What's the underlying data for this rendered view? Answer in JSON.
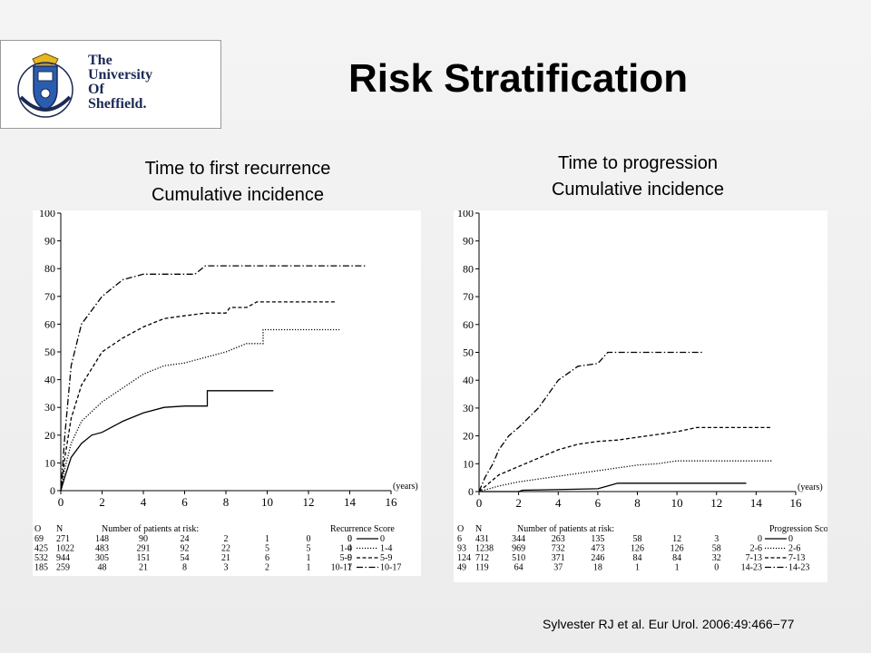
{
  "slide": {
    "title": "Risk Stratification",
    "citation": "Sylvester RJ et al. Eur Urol. 2006:49:466−77"
  },
  "logo": {
    "lines": [
      "The",
      "University",
      "Of",
      "Sheffield."
    ]
  },
  "captions": {
    "left": [
      "Time to first recurrence",
      "Cumulative incidence"
    ],
    "right": [
      "Time to progression",
      "Cumulative incidence"
    ]
  },
  "chart_data": [
    {
      "type": "line",
      "title": "",
      "xlabel": "(years)",
      "ylabel": "",
      "xlim": [
        0,
        16
      ],
      "ylim": [
        0,
        100
      ],
      "x_ticks": [
        0,
        2,
        4,
        6,
        8,
        10,
        12,
        14,
        16
      ],
      "y_ticks": [
        0,
        10,
        20,
        30,
        40,
        50,
        60,
        70,
        80,
        90,
        100
      ],
      "grid": false,
      "risk_table": {
        "title": "Number of patients at risk:",
        "col_O": "O",
        "col_N": "N",
        "score_title": "Recurrence Score",
        "rows": [
          {
            "O": "69",
            "N": "271",
            "counts": [
              "148",
              "90",
              "24",
              "2",
              "1",
              "0",
              "0"
            ],
            "score": "0"
          },
          {
            "O": "425",
            "N": "1022",
            "counts": [
              "483",
              "291",
              "92",
              "22",
              "5",
              "5",
              "0"
            ],
            "score": "1-4"
          },
          {
            "O": "532",
            "N": "944",
            "counts": [
              "305",
              "151",
              "54",
              "21",
              "6",
              "1",
              "0"
            ],
            "score": "5-9"
          },
          {
            "O": "185",
            "N": "259",
            "counts": [
              "48",
              "21",
              "8",
              "3",
              "2",
              "1",
              "1"
            ],
            "score": "10-17"
          }
        ]
      },
      "series": [
        {
          "name": "0",
          "dash": "solid",
          "points": [
            [
              0,
              0
            ],
            [
              0.2,
              5
            ],
            [
              0.5,
              12
            ],
            [
              1,
              17
            ],
            [
              1.5,
              20
            ],
            [
              2,
              21
            ],
            [
              3,
              25
            ],
            [
              4,
              28
            ],
            [
              5,
              30
            ],
            [
              6,
              30.5
            ],
            [
              7.1,
              30.5
            ],
            [
              7.1,
              36
            ],
            [
              10.3,
              36
            ]
          ]
        },
        {
          "name": "1-4",
          "dash": "dotted",
          "points": [
            [
              0,
              0
            ],
            [
              0.2,
              8
            ],
            [
              0.5,
              17
            ],
            [
              1,
              25
            ],
            [
              2,
              32
            ],
            [
              3,
              37
            ],
            [
              4,
              42
            ],
            [
              5,
              45
            ],
            [
              6,
              46
            ],
            [
              7,
              48
            ],
            [
              8,
              50
            ],
            [
              9,
              53
            ],
            [
              9.8,
              53
            ],
            [
              9.8,
              58
            ],
            [
              11,
              58
            ],
            [
              13.5,
              58
            ]
          ]
        },
        {
          "name": "5-9",
          "dash": "dashed",
          "points": [
            [
              0,
              0
            ],
            [
              0.2,
              12
            ],
            [
              0.5,
              26
            ],
            [
              1,
              38
            ],
            [
              2,
              50
            ],
            [
              3,
              55
            ],
            [
              4,
              59
            ],
            [
              5,
              62
            ],
            [
              6,
              63
            ],
            [
              7,
              64
            ],
            [
              8,
              64
            ],
            [
              8.2,
              66
            ],
            [
              9,
              66
            ],
            [
              9.5,
              68
            ],
            [
              11,
              68
            ],
            [
              13.3,
              68
            ]
          ]
        },
        {
          "name": "10-17",
          "dash": "dashdot",
          "points": [
            [
              0,
              0
            ],
            [
              0.2,
              20
            ],
            [
              0.5,
              45
            ],
            [
              1,
              60
            ],
            [
              2,
              70
            ],
            [
              3,
              76
            ],
            [
              4,
              78
            ],
            [
              5,
              78
            ],
            [
              6.5,
              78
            ],
            [
              7,
              81
            ],
            [
              10,
              81
            ],
            [
              12,
              81
            ],
            [
              14.8,
              81
            ]
          ]
        }
      ]
    },
    {
      "type": "line",
      "title": "",
      "xlabel": "(years)",
      "ylabel": "",
      "xlim": [
        0,
        16
      ],
      "ylim": [
        0,
        100
      ],
      "x_ticks": [
        0,
        2,
        4,
        6,
        8,
        10,
        12,
        14,
        16
      ],
      "y_ticks": [
        0,
        10,
        20,
        30,
        40,
        50,
        60,
        70,
        80,
        90,
        100
      ],
      "grid": false,
      "risk_table": {
        "title": "Number of patients at risk:",
        "col_O": "O",
        "col_N": "N",
        "score_title": "Progression Score",
        "rows": [
          {
            "O": "6",
            "N": "431",
            "counts": [
              "344",
              "263",
              "135",
              "58",
              "12",
              "3"
            ],
            "score": "0"
          },
          {
            "O": "93",
            "N": "1238",
            "counts": [
              "969",
              "732",
              "473",
              "126",
              "126",
              "58"
            ],
            "score": "2-6"
          },
          {
            "O": "124",
            "N": "712",
            "counts": [
              "510",
              "371",
              "246",
              "84",
              "84",
              "32"
            ],
            "score": "7-13"
          },
          {
            "O": "49",
            "N": "119",
            "counts": [
              "64",
              "37",
              "18",
              "1",
              "1",
              "0"
            ],
            "score": "14-23"
          }
        ]
      },
      "series": [
        {
          "name": "0",
          "dash": "solid",
          "points": [
            [
              0,
              0
            ],
            [
              2,
              0
            ],
            [
              2.2,
              0.5
            ],
            [
              6,
              1
            ],
            [
              6.5,
              2
            ],
            [
              7,
              3
            ],
            [
              10,
              3
            ],
            [
              12,
              3
            ],
            [
              13.5,
              3
            ]
          ]
        },
        {
          "name": "2-6",
          "dash": "dotted",
          "points": [
            [
              0,
              0
            ],
            [
              1,
              2
            ],
            [
              2,
              3.5
            ],
            [
              3,
              4.5
            ],
            [
              4,
              5.5
            ],
            [
              5,
              6.5
            ],
            [
              6,
              7.5
            ],
            [
              7,
              8.5
            ],
            [
              8,
              9.5
            ],
            [
              9,
              10
            ],
            [
              10,
              11
            ],
            [
              12,
              11
            ],
            [
              14.8,
              11
            ]
          ]
        },
        {
          "name": "7-13",
          "dash": "dashed",
          "points": [
            [
              0,
              0
            ],
            [
              0.5,
              3
            ],
            [
              1,
              6
            ],
            [
              2,
              9
            ],
            [
              3,
              12
            ],
            [
              4,
              15
            ],
            [
              5,
              17
            ],
            [
              6,
              18
            ],
            [
              7,
              18.5
            ],
            [
              8,
              19.5
            ],
            [
              9,
              20.5
            ],
            [
              10,
              21.5
            ],
            [
              11,
              23
            ],
            [
              13,
              23
            ],
            [
              14.8,
              23
            ]
          ]
        },
        {
          "name": "14-23",
          "dash": "dashdot",
          "points": [
            [
              0,
              0
            ],
            [
              0.3,
              5
            ],
            [
              0.7,
              10
            ],
            [
              1,
              15
            ],
            [
              1.5,
              20
            ],
            [
              2,
              23
            ],
            [
              3,
              30
            ],
            [
              4,
              40
            ],
            [
              5,
              45
            ],
            [
              6,
              46
            ],
            [
              6.5,
              50
            ],
            [
              8,
              50
            ],
            [
              10,
              50
            ],
            [
              11.3,
              50
            ]
          ]
        }
      ]
    }
  ]
}
